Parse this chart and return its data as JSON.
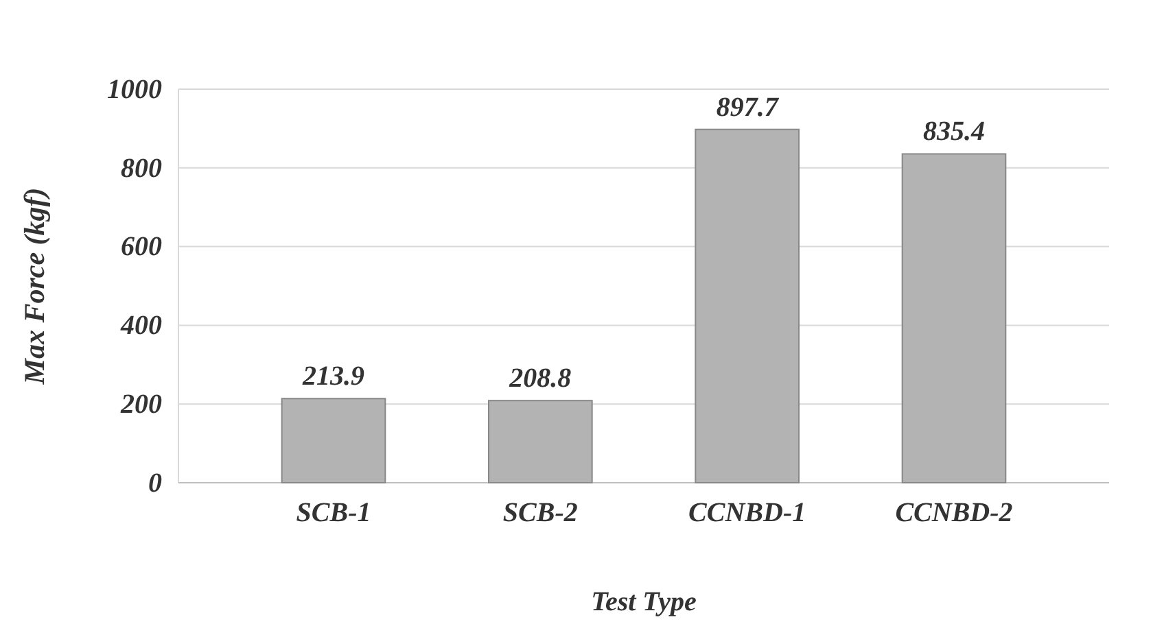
{
  "chart_data": {
    "type": "bar",
    "xlabel": "Test Type",
    "ylabel": "Max Force (kgf)",
    "categories": [
      "SCB-1",
      "SCB-2",
      "CCNBD-1",
      "CCNBD-2"
    ],
    "values": [
      213.9,
      208.8,
      897.7,
      835.4
    ],
    "color": "#b3b3b3",
    "ylim": [
      0,
      1000
    ],
    "yticks": [
      0,
      200,
      400,
      600,
      800,
      1000
    ],
    "grid": "y",
    "data_labels": true
  }
}
